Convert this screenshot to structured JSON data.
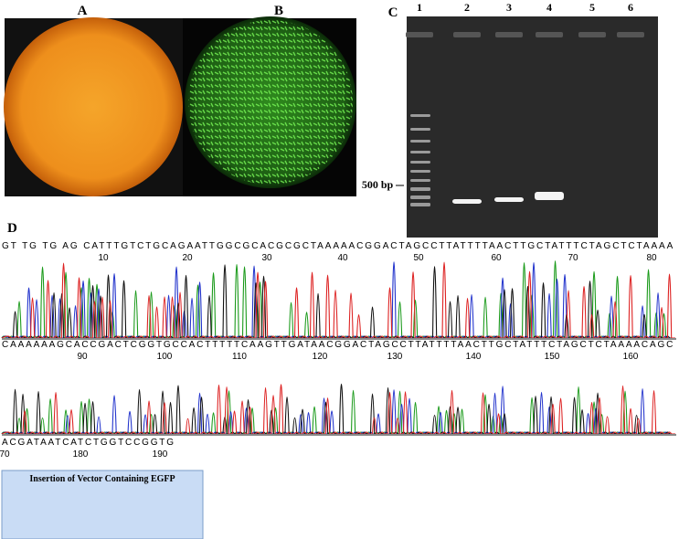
{
  "panels": {
    "a": {
      "label": "A"
    },
    "b": {
      "label": "B"
    },
    "c": {
      "label": "C",
      "lanes": [
        "1",
        "2",
        "3",
        "4",
        "5",
        "6"
      ],
      "marker": "500 bp"
    },
    "d": {
      "label": "D",
      "rows": [
        {
          "sequence": "GT  TG TG AG CATTTGTCTGCAGAATTGGCGCACGCGCTAAAAACGGACTAGCCTTATTTTAACTTGCTATTTCTAGCTCTAAAA",
          "positions": [
            "10",
            "20",
            "30",
            "40",
            "50",
            "60",
            "70",
            "80"
          ]
        },
        {
          "sequence": "CAAAAAAGCACCGACTCGGTGCCACTTTTTCAAGTTGATAACGGACTAGCCTTATTTTAACTTGCTATTTCTAGCTCTAAAACAGC",
          "positions": [
            "90",
            "100",
            "110",
            "120",
            "130",
            "140",
            "150",
            "160"
          ]
        },
        {
          "sequence": "ACGATAATCATCTGGTCCGGTG",
          "positions": [
            "70",
            "180",
            "190"
          ]
        }
      ],
      "insertion_label": "Insertion of Vector Containing EGFP"
    }
  }
}
